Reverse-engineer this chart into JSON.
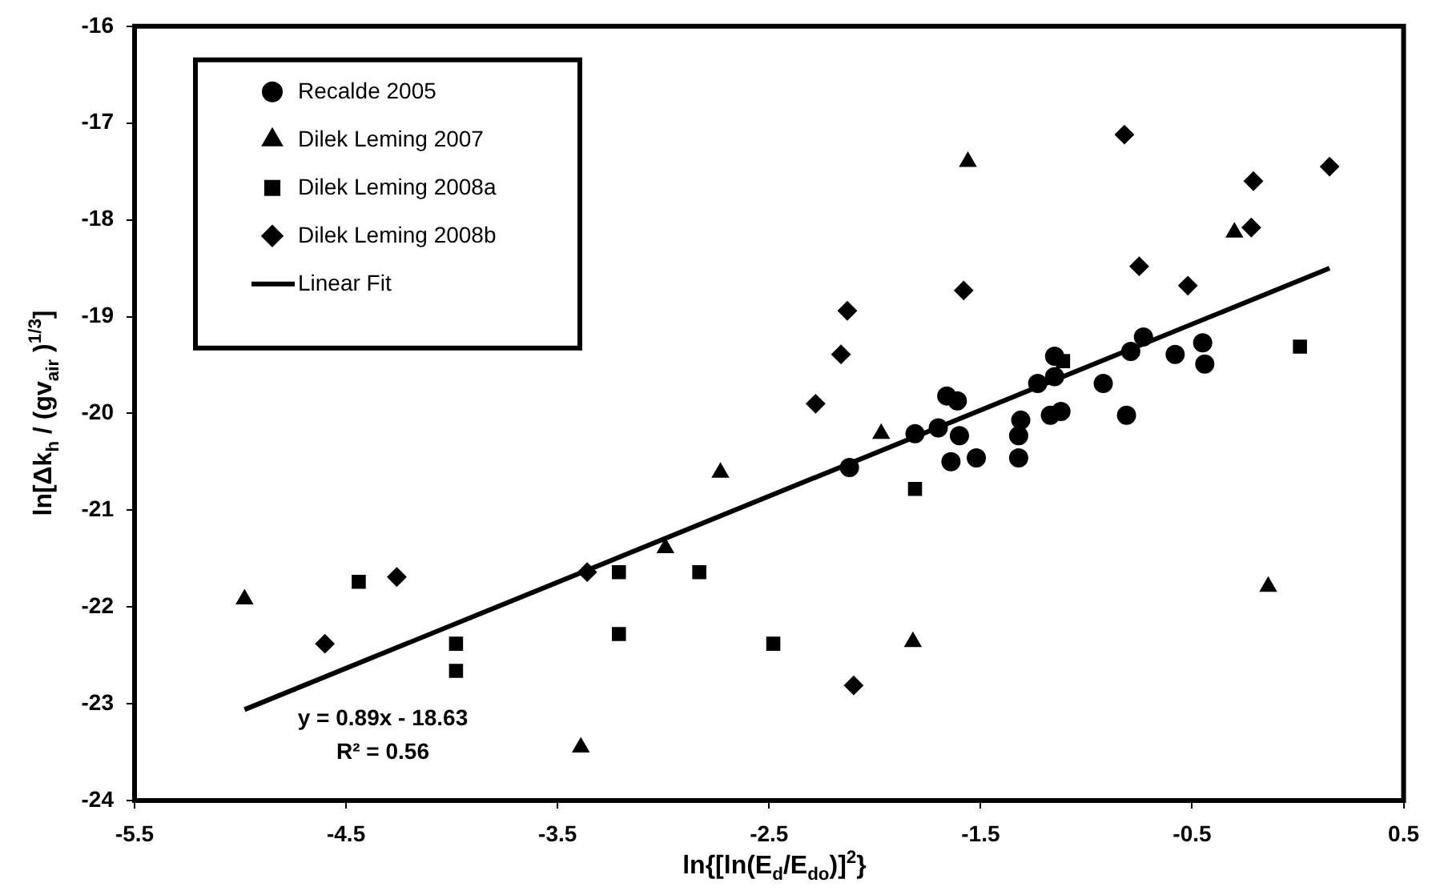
{
  "chart_data": {
    "type": "scatter",
    "xlabel": "ln{[ln(E$_{d}$/E$_{do}$)]$^{2}$}",
    "ylabel": "ln[Δk$_{h}$ / (gv$_{air}$ )$^{1/3}$]",
    "xlim": [
      -5.5,
      0.5
    ],
    "xticks": [
      -5.5,
      -4.5,
      -3.5,
      -2.5,
      -1.5,
      -0.5,
      0.5
    ],
    "ylim": [
      -24,
      -16
    ],
    "yticks": [
      -24,
      -23,
      -22,
      -21,
      -20,
      -19,
      -18,
      -17,
      -16
    ],
    "grid": false,
    "legend": "top left",
    "annotations": [
      "y = 0.89x - 18.63",
      "R² = 0.56"
    ],
    "series": [
      {
        "name": "Recalde 2005",
        "marker": "circle",
        "color": "#000000",
        "x": [
          -2.12,
          -1.81,
          -1.7,
          -1.6,
          -1.64,
          -1.52,
          -1.31,
          -1.32,
          -1.32,
          -1.17,
          -1.12,
          -0.81,
          -0.45,
          -0.44,
          -0.58,
          -0.79,
          -0.73,
          -0.92,
          -1.15,
          -1.23,
          -1.15,
          -1.66,
          -1.61
        ],
        "values": [
          -20.56,
          -20.21,
          -20.15,
          -20.23,
          -20.5,
          -20.46,
          -20.07,
          -20.23,
          -20.46,
          -20.02,
          -19.98,
          -20.02,
          -19.27,
          -19.49,
          -19.39,
          -19.36,
          -19.21,
          -19.69,
          -19.41,
          -19.69,
          -19.62,
          -19.82,
          -19.87
        ]
      },
      {
        "name": "Dilek Leming 2007",
        "marker": "triangle",
        "color": "#000000",
        "x": [
          -4.98,
          -3.39,
          -2.99,
          -2.73,
          -1.97,
          -1.82,
          -1.56,
          -0.3,
          -0.14
        ],
        "values": [
          -21.92,
          -23.45,
          -21.39,
          -20.61,
          -20.21,
          -22.36,
          -17.4,
          -18.13,
          -21.79
        ]
      },
      {
        "name": "Dilek Leming 2008a",
        "marker": "square",
        "color": "#000000",
        "x": [
          -4.44,
          -3.98,
          -3.98,
          -3.21,
          -3.21,
          -2.83,
          -2.48,
          -1.81,
          -1.11,
          0.01
        ],
        "values": [
          -21.74,
          -22.38,
          -22.66,
          -21.64,
          -22.28,
          -21.64,
          -22.38,
          -20.78,
          -19.46,
          -19.31
        ]
      },
      {
        "name": "Dilek Leming 2008b",
        "marker": "diamond",
        "color": "#000000",
        "x": [
          -4.6,
          -4.26,
          -3.36,
          -2.28,
          -2.16,
          -2.13,
          -2.1,
          -1.58,
          -0.82,
          -0.75,
          -0.52,
          -0.22,
          -0.21,
          0.15
        ],
        "values": [
          -22.38,
          -21.69,
          -21.64,
          -19.9,
          -19.39,
          -18.94,
          -22.81,
          -18.73,
          -17.12,
          -18.48,
          -18.68,
          -18.08,
          -17.6,
          -17.45
        ]
      },
      {
        "name": "Linear Fit",
        "type": "line",
        "marker": "none",
        "line_style": "solid",
        "color": "#000000",
        "x": [
          -4.98,
          0.15
        ],
        "values": [
          -23.06,
          -18.5
        ]
      }
    ]
  }
}
